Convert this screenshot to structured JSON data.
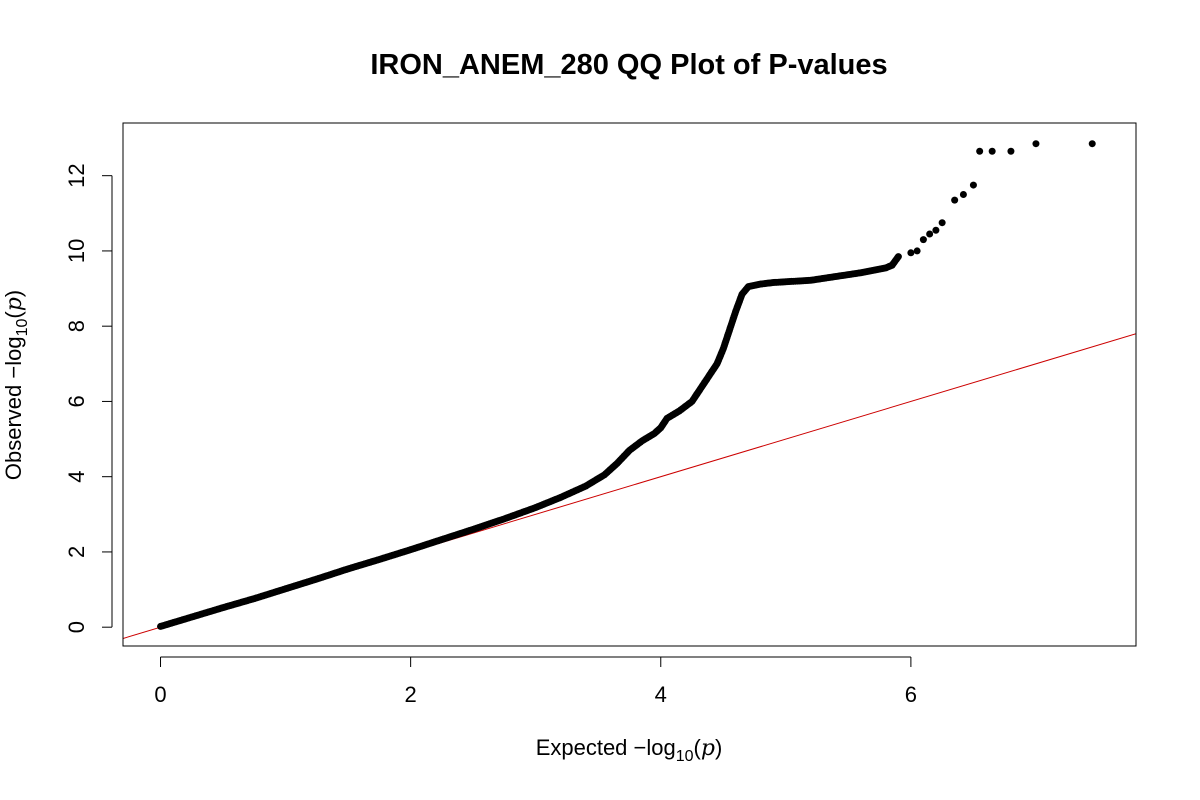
{
  "chart_data": {
    "type": "scatter",
    "title": "IRON_ANEM_280 QQ Plot of P-values",
    "xlabel": {
      "prefix": "Expected ",
      "minus": "−",
      "log": "log",
      "sub": "10",
      "open": "(",
      "var": "p",
      "close": ")"
    },
    "ylabel": {
      "prefix": "Observed ",
      "minus": "−",
      "log": "log",
      "sub": "10",
      "open": "(",
      "var": "p",
      "close": ")"
    },
    "xlim": [
      -0.3,
      7.8
    ],
    "ylim": [
      -0.5,
      13.4
    ],
    "x_ticks": [
      0,
      2,
      4,
      6
    ],
    "y_ticks": [
      0,
      2,
      4,
      6,
      8,
      10,
      12
    ],
    "grid": false,
    "point_color": "#000000",
    "reference_line": {
      "slope": 1,
      "intercept": 0,
      "color": "#cc0000"
    },
    "series": [
      {
        "x": [
          0,
          0.25,
          0.5,
          0.75,
          1.0,
          1.25,
          1.5,
          1.75,
          2.0,
          2.25,
          2.5,
          2.75,
          3.0,
          3.2,
          3.4,
          3.55,
          3.65,
          3.75,
          3.85,
          3.95,
          4.0,
          4.05,
          4.15,
          4.25,
          4.35,
          4.45,
          4.5,
          4.55,
          4.6,
          4.65,
          4.7,
          4.8,
          4.9,
          5.0,
          5.2,
          5.4,
          5.6,
          5.8,
          5.85,
          5.9,
          6.0,
          6.05,
          6.1,
          6.15,
          6.2,
          6.25,
          6.35,
          6.42,
          6.5,
          6.55,
          6.65,
          6.8,
          7.0,
          7.45
        ],
        "y": [
          0.02,
          0.27,
          0.52,
          0.76,
          1.02,
          1.28,
          1.55,
          1.8,
          2.06,
          2.33,
          2.6,
          2.88,
          3.18,
          3.45,
          3.75,
          4.05,
          4.35,
          4.7,
          4.95,
          5.15,
          5.3,
          5.55,
          5.75,
          6.0,
          6.5,
          7.0,
          7.4,
          7.9,
          8.4,
          8.85,
          9.05,
          9.12,
          9.16,
          9.18,
          9.22,
          9.32,
          9.42,
          9.55,
          9.62,
          9.85,
          9.95,
          10.0,
          10.3,
          10.45,
          10.55,
          10.75,
          11.35,
          11.5,
          11.75,
          12.65,
          12.65,
          12.65,
          12.85,
          12.85
        ]
      }
    ]
  }
}
